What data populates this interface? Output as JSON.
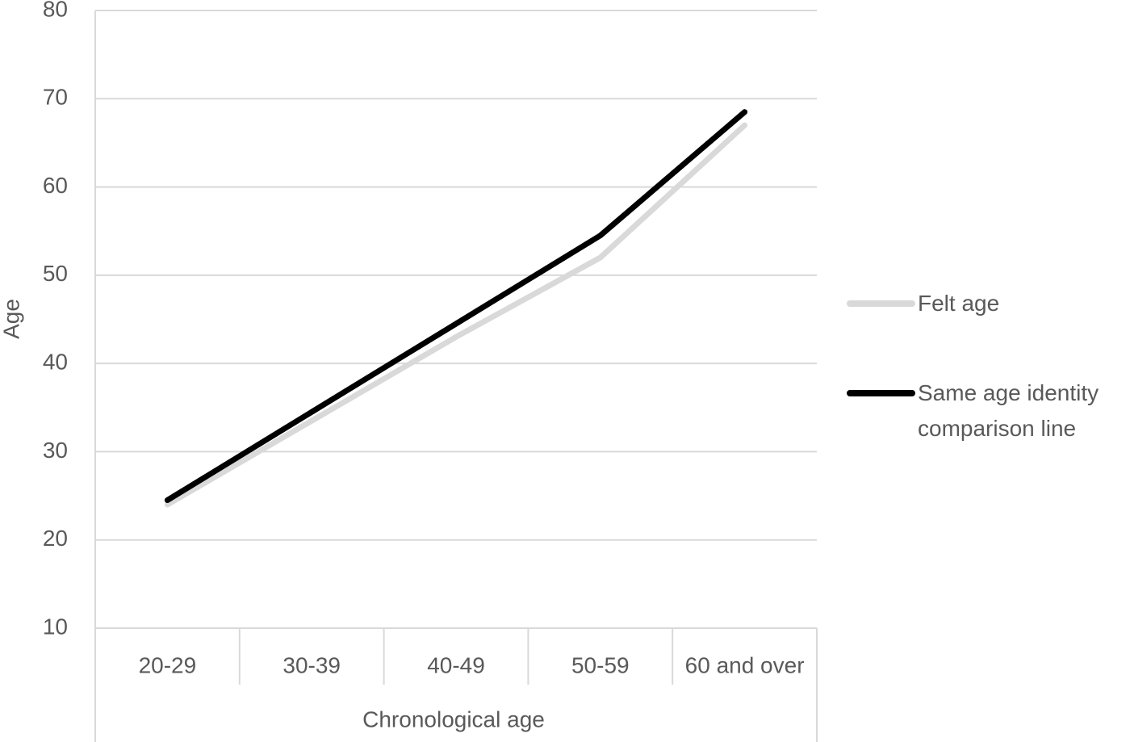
{
  "chart_data": {
    "type": "line",
    "x_label": "Chronological age",
    "y_label": "Age",
    "categories": [
      "20-29",
      "30-39",
      "40-49",
      "50-59",
      "60 and over"
    ],
    "series": [
      {
        "name": "Felt age",
        "color": "#d9d9d9",
        "values": [
          24,
          33.5,
          43,
          52,
          67
        ]
      },
      {
        "name": "Same age identity comparison line",
        "color": "#000000",
        "values": [
          24.5,
          34.5,
          44.5,
          54.5,
          68.5
        ]
      }
    ],
    "ylim": [
      10,
      80
    ],
    "yticks": [
      10,
      20,
      30,
      40,
      50,
      60,
      70,
      80
    ],
    "grid": true,
    "legend": "right"
  }
}
